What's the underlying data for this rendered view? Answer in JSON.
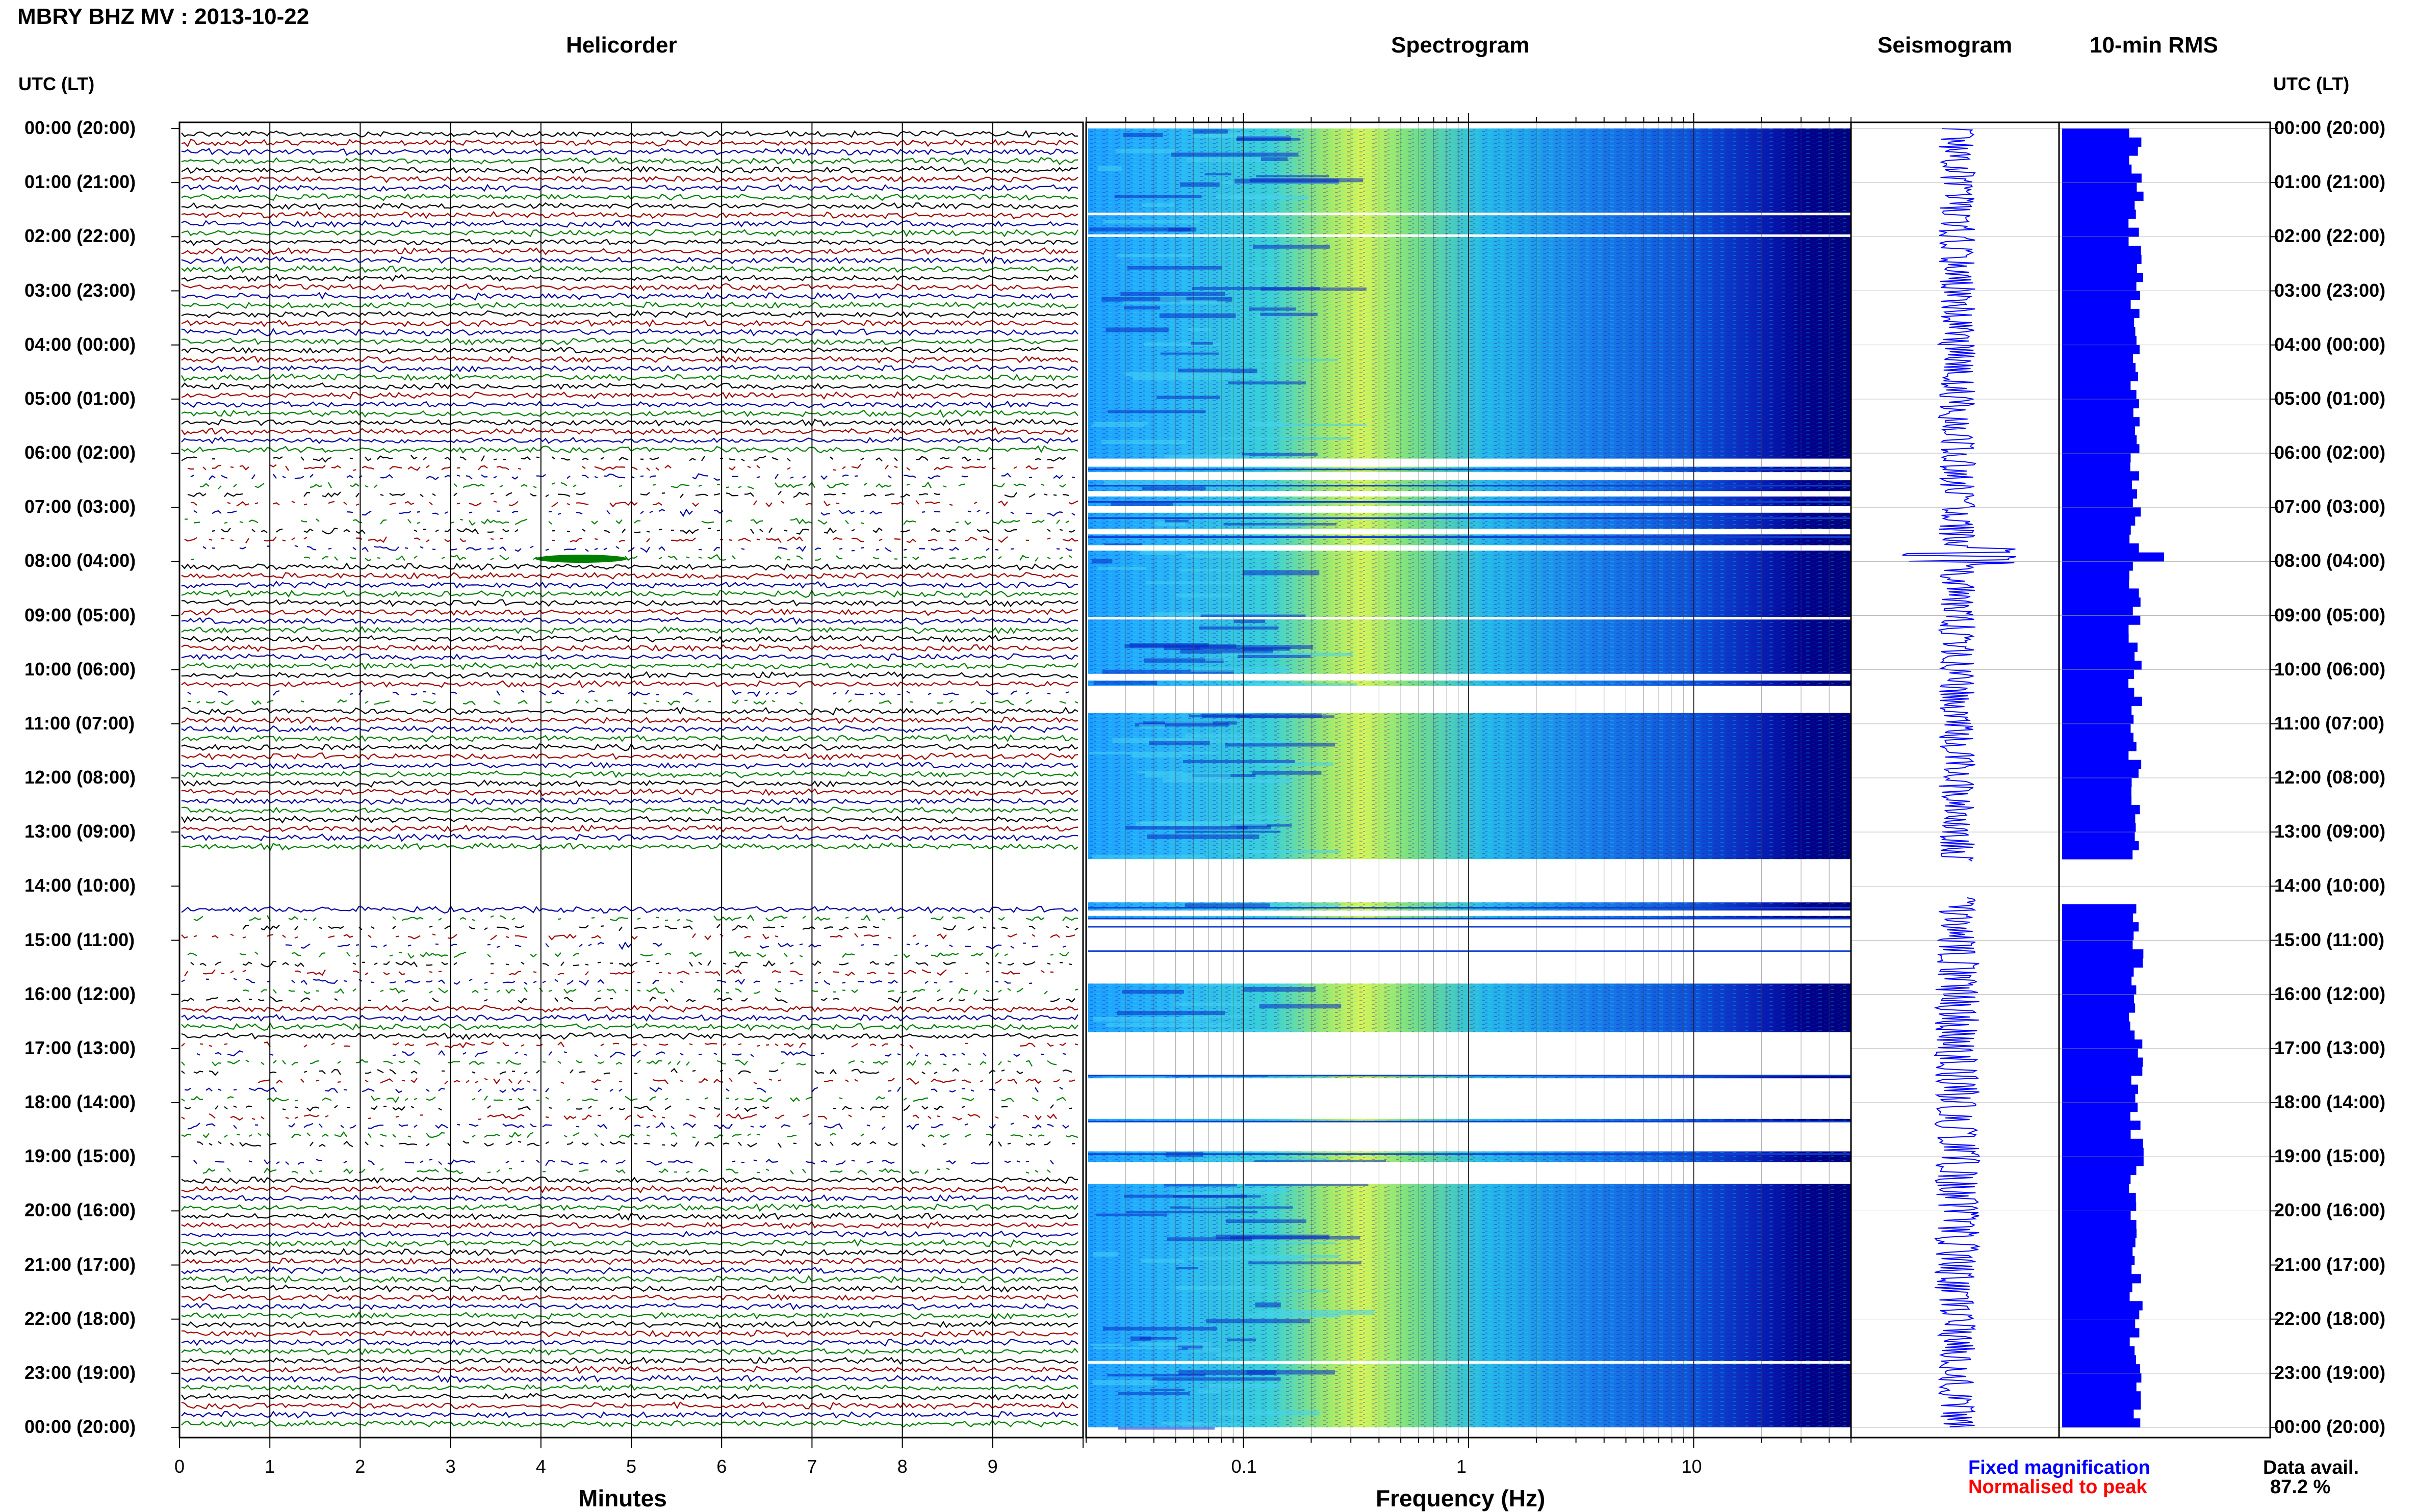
{
  "header": {
    "title": "MBRY BHZ MV : 2013-10-22"
  },
  "panels": {
    "helicorder": "Helicorder",
    "spectrogram": "Spectrogram",
    "seismogram": "Seismogram",
    "rms": "10-min RMS"
  },
  "axis": {
    "time_header": "UTC (LT)",
    "minutes_label": "Minutes",
    "frequency_label": "Frequency (Hz)",
    "minute_ticks": [
      "0",
      "1",
      "2",
      "3",
      "4",
      "5",
      "6",
      "7",
      "8",
      "9"
    ],
    "frequency_ticks": [
      "0.1",
      "1",
      "10"
    ]
  },
  "time_labels": [
    "00:00 (20:00)",
    "01:00 (21:00)",
    "02:00 (22:00)",
    "03:00 (23:00)",
    "04:00 (00:00)",
    "05:00 (01:00)",
    "06:00 (02:00)",
    "07:00 (03:00)",
    "08:00 (04:00)",
    "09:00 (05:00)",
    "10:00 (06:00)",
    "11:00 (07:00)",
    "12:00 (08:00)",
    "13:00 (09:00)",
    "14:00 (10:00)",
    "15:00 (11:00)",
    "16:00 (12:00)",
    "17:00 (13:00)",
    "18:00 (14:00)",
    "19:00 (15:00)",
    "20:00 (16:00)",
    "21:00 (17:00)",
    "22:00 (18:00)",
    "23:00 (19:00)",
    "00:00 (20:00)"
  ],
  "legend": {
    "fixed": "Fixed magnification",
    "normalised": "Normalised to peak",
    "fixed_color": "#0000ff",
    "normalised_color": "#ff0000"
  },
  "availability": {
    "label": "Data avail.",
    "value": "87.2 %"
  },
  "colors": {
    "trace_cycle": [
      "#000000",
      "#a00000",
      "#0000a0",
      "#007f00"
    ],
    "spectrogram_bg": "#00008b",
    "seismogram": "#0000ff",
    "rms": "#0000ff"
  },
  "chart_data": {
    "type": "heatmap",
    "station": "MBRY BHZ MV",
    "date": "2013-10-22",
    "helicorder": {
      "minutes_per_line": 10,
      "x_range_minutes": [
        0,
        10
      ],
      "gaps_hours": [
        [
          13.2,
          14.25
        ],
        [
          18.7,
          19.0
        ]
      ]
    },
    "spectrogram": {
      "frequency_range_hz": [
        0.02,
        50
      ],
      "frequency_scale": "log",
      "peak_energy_hz": [
        0.2,
        0.5
      ],
      "gaps_hours": [
        [
          6.1,
          6.25
        ],
        [
          6.35,
          6.5
        ],
        [
          6.7,
          6.8
        ],
        [
          6.98,
          7.1
        ],
        [
          7.4,
          7.5
        ],
        [
          7.7,
          7.8
        ],
        [
          10.1,
          10.2
        ],
        [
          10.3,
          10.8
        ],
        [
          13.5,
          14.3
        ],
        [
          14.45,
          14.55
        ],
        [
          14.6,
          15.8
        ],
        [
          16.7,
          17.5
        ],
        [
          17.55,
          18.3
        ],
        [
          18.35,
          18.9
        ],
        [
          19.1,
          19.5
        ]
      ]
    },
    "rms_10min": {
      "x_unit": "relative",
      "gap_hours": [
        13.5,
        14.2
      ],
      "peak_hour": 7.9
    }
  }
}
